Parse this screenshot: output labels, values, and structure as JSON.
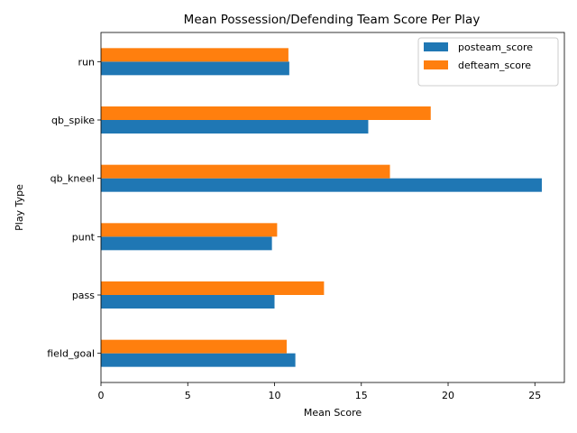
{
  "chart_data": {
    "type": "bar",
    "orientation": "horizontal",
    "title": "Mean Possession/Defending Team Score Per Play",
    "xlabel": "Mean Score",
    "ylabel": "Play Type",
    "categories": [
      "field_goal",
      "pass",
      "punt",
      "qb_kneel",
      "qb_spike",
      "run"
    ],
    "series": [
      {
        "name": "posteam_score",
        "color": "#1f77b4",
        "values": [
          11.2,
          10.0,
          9.85,
          25.4,
          15.4,
          10.85
        ]
      },
      {
        "name": "defteam_score",
        "color": "#ff7f0e",
        "values": [
          10.7,
          12.85,
          10.15,
          16.65,
          19.0,
          10.8
        ]
      }
    ],
    "xlim": [
      0,
      26.7
    ],
    "xticks": [
      0,
      5,
      10,
      15,
      20,
      25
    ],
    "grid": false,
    "legend_position": "top-right"
  }
}
